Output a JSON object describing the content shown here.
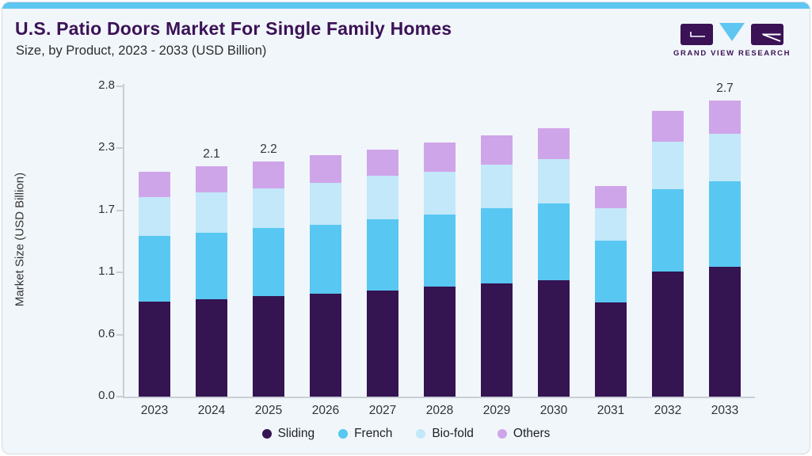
{
  "header": {
    "title": "U.S. Patio Doors Market For Single Family Homes",
    "subtitle": "Size, by Product, 2023 - 2033 (USD Billion)"
  },
  "logo": {
    "text": "GRAND VIEW RESEARCH",
    "block_color": "#3b1256",
    "triangle_color": "#5ec6f0"
  },
  "theme": {
    "card_background": "#f1f6fa",
    "top_strip_color": "#5ec6f0",
    "title_color": "#3b1256",
    "axis_color": "#c9cfd6",
    "text_color": "#303336"
  },
  "chart_data": {
    "type": "bar",
    "stacked": true,
    "title": "U.S. Patio Doors Market For Single Family Homes",
    "subtitle": "Size, by Product, 2023 - 2033 (USD Billion)",
    "xlabel": "",
    "ylabel": "Market Size (USD Billion)",
    "ylim": [
      0,
      2.8
    ],
    "ytick_labels": [
      "0.0",
      "0.6",
      "1.1",
      "1.7",
      "2.3",
      "2.8"
    ],
    "grid": false,
    "legend_position": "bottom",
    "categories": [
      "2023",
      "2024",
      "2025",
      "2026",
      "2027",
      "2028",
      "2029",
      "2030",
      "2031",
      "2032",
      "2033"
    ],
    "series": [
      {
        "name": "Sliding",
        "color": "#351452",
        "values": [
          0.86,
          0.88,
          0.91,
          0.93,
          0.96,
          0.99,
          1.02,
          1.05,
          0.85,
          1.13,
          1.17
        ]
      },
      {
        "name": "French",
        "color": "#58c7f2",
        "values": [
          0.59,
          0.6,
          0.61,
          0.62,
          0.64,
          0.65,
          0.68,
          0.69,
          0.56,
          0.74,
          0.77
        ]
      },
      {
        "name": "Bio-fold",
        "color": "#c2e8f9",
        "values": [
          0.35,
          0.36,
          0.36,
          0.38,
          0.39,
          0.39,
          0.39,
          0.4,
          0.29,
          0.43,
          0.43
        ]
      },
      {
        "name": "Others",
        "color": "#cfa5e9",
        "values": [
          0.23,
          0.24,
          0.24,
          0.25,
          0.24,
          0.26,
          0.27,
          0.28,
          0.2,
          0.28,
          0.3
        ]
      }
    ],
    "bar_total_labels": {
      "2024": "2.1",
      "2025": "2.2",
      "2033": "2.7"
    }
  }
}
